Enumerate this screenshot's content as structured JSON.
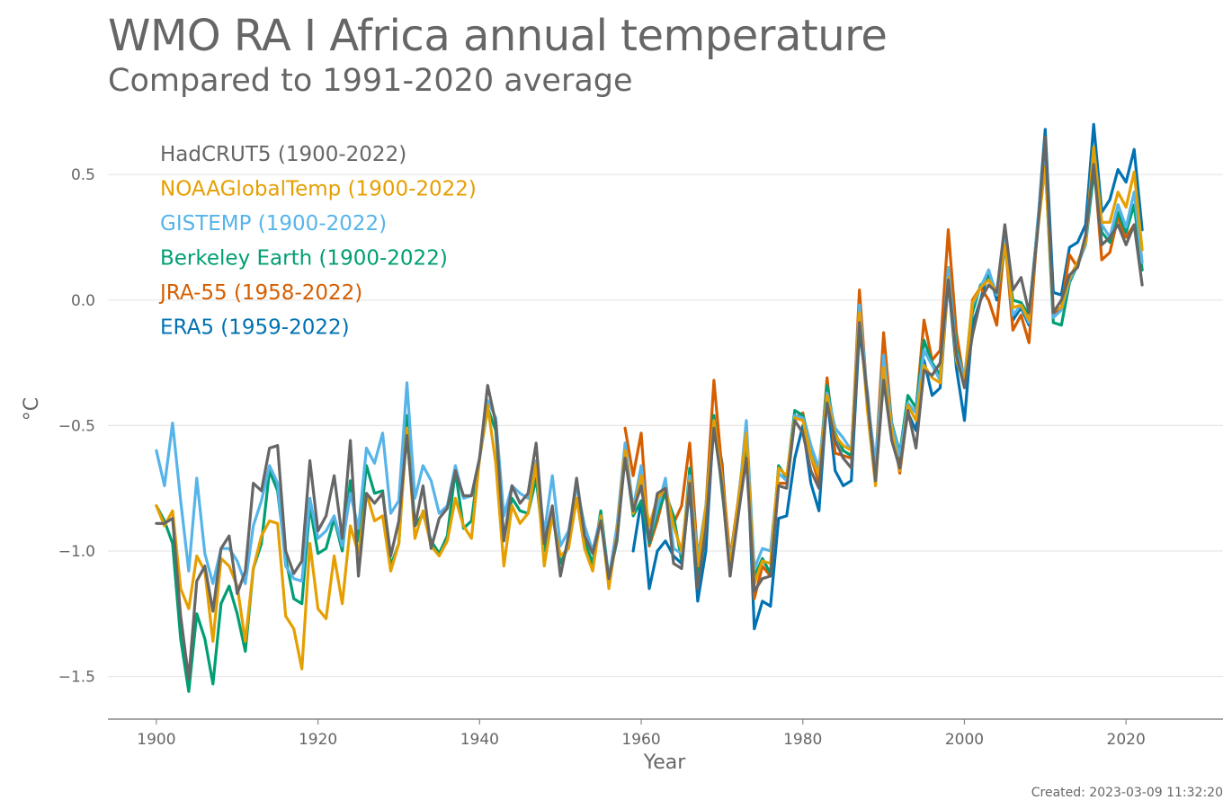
{
  "title": "WMO RA I Africa annual temperature",
  "subtitle": "Compared to 1991-2020 average",
  "created": "Created: 2023-03-09 11:32:20",
  "chart_data": {
    "type": "line",
    "xlabel": "Year",
    "ylabel": "°C",
    "xlim": [
      1894,
      2032
    ],
    "ylim": [
      -1.67,
      0.73
    ],
    "x_ticks": [
      1900,
      1920,
      1940,
      1960,
      1980,
      2000,
      2020
    ],
    "y_ticks": [
      -1.5,
      -1.0,
      -0.5,
      0.0,
      0.5
    ],
    "y_tick_labels": [
      "−1.5",
      "−1.0",
      "−0.5",
      "0.0",
      "0.5"
    ],
    "grid": "horizontal",
    "legend_position": "top-left",
    "series": [
      {
        "name": "ERA5 (1959-2022)",
        "color": "#0072b2",
        "start": 1959,
        "values": [
          -1.0,
          -0.8,
          -1.15,
          -1.0,
          -0.96,
          -1.02,
          -1.05,
          -0.75,
          -1.2,
          -1.0,
          -0.47,
          -0.65,
          -1.1,
          -0.8,
          -0.52,
          -1.31,
          -1.2,
          -1.22,
          -0.87,
          -0.86,
          -0.63,
          -0.5,
          -0.73,
          -0.84,
          -0.38,
          -0.68,
          -0.74,
          -0.72,
          -0.12,
          -0.37,
          -0.72,
          -0.25,
          -0.55,
          -0.65,
          -0.45,
          -0.52,
          -0.24,
          -0.38,
          -0.35,
          0.08,
          -0.27,
          -0.48,
          -0.1,
          0.0,
          0.12,
          0.0,
          0.25,
          -0.08,
          -0.03,
          -0.1,
          0.27,
          0.68,
          0.03,
          0.02,
          0.21,
          0.23,
          0.3,
          0.7,
          0.35,
          0.4,
          0.52,
          0.47,
          0.6,
          0.28
        ]
      },
      {
        "name": "JRA-55 (1958-2022)",
        "color": "#d55e00",
        "start": 1958,
        "values": [
          -0.51,
          -0.7,
          -0.53,
          -0.98,
          -0.88,
          -0.75,
          -0.89,
          -0.82,
          -0.57,
          -1.03,
          -0.83,
          -0.32,
          -0.68,
          -1.03,
          -0.8,
          -0.57,
          -1.19,
          -1.06,
          -1.1,
          -0.73,
          -0.73,
          -0.47,
          -0.45,
          -0.62,
          -0.73,
          -0.31,
          -0.61,
          -0.62,
          -0.63,
          0.04,
          -0.4,
          -0.66,
          -0.13,
          -0.49,
          -0.69,
          -0.43,
          -0.44,
          -0.08,
          -0.24,
          -0.2,
          0.28,
          -0.13,
          -0.33,
          0.0,
          0.05,
          0.0,
          -0.1,
          0.24,
          -0.12,
          -0.06,
          -0.17,
          0.27,
          0.58,
          -0.06,
          -0.03,
          0.18,
          0.13,
          0.25,
          0.56,
          0.16,
          0.19,
          0.33,
          0.25,
          0.3,
          0.12
        ]
      },
      {
        "name": "Berkeley Earth (1900-2022)",
        "color": "#009e73",
        "start": 1900,
        "values": [
          -0.82,
          -0.88,
          -0.97,
          -1.35,
          -1.56,
          -1.25,
          -1.35,
          -1.53,
          -1.21,
          -1.14,
          -1.25,
          -1.4,
          -1.07,
          -0.97,
          -0.68,
          -0.76,
          -1.03,
          -1.19,
          -1.21,
          -0.82,
          -1.01,
          -0.99,
          -0.87,
          -1.0,
          -0.72,
          -0.96,
          -0.66,
          -0.77,
          -0.76,
          -1.06,
          -0.97,
          -0.46,
          -0.9,
          -0.85,
          -0.96,
          -1.01,
          -0.94,
          -0.68,
          -0.91,
          -0.88,
          -0.63,
          -0.43,
          -0.52,
          -0.95,
          -0.79,
          -0.84,
          -0.85,
          -0.71,
          -1.0,
          -0.85,
          -1.05,
          -0.98,
          -0.72,
          -0.96,
          -1.05,
          -0.84,
          -1.11,
          -0.96,
          -0.61,
          -0.86,
          -0.8,
          -0.97,
          -0.85,
          -0.77,
          -0.86,
          -1.04,
          -0.67,
          -1.09,
          -0.88,
          -0.46,
          -0.76,
          -1.04,
          -0.84,
          -0.55,
          -1.1,
          -1.03,
          -1.09,
          -0.66,
          -0.71,
          -0.44,
          -0.46,
          -0.58,
          -0.68,
          -0.34,
          -0.53,
          -0.6,
          -0.62,
          -0.04,
          -0.41,
          -0.67,
          -0.23,
          -0.49,
          -0.61,
          -0.38,
          -0.43,
          -0.16,
          -0.25,
          -0.3,
          0.12,
          -0.19,
          -0.32,
          -0.05,
          0.06,
          0.09,
          0.02,
          0.21,
          0.0,
          -0.01,
          -0.06,
          0.28,
          0.55,
          -0.09,
          -0.1,
          0.07,
          0.14,
          0.22,
          0.51,
          0.27,
          0.23,
          0.35,
          0.27,
          0.38,
          0.12
        ]
      },
      {
        "name": "GISTEMP (1900-2022)",
        "color": "#56b4e9",
        "start": 1900,
        "values": [
          -0.6,
          -0.74,
          -0.49,
          -0.8,
          -1.08,
          -0.71,
          -1.01,
          -1.13,
          -0.99,
          -0.99,
          -1.04,
          -1.13,
          -0.9,
          -0.8,
          -0.66,
          -0.73,
          -1.06,
          -1.11,
          -1.12,
          -0.79,
          -0.95,
          -0.92,
          -0.86,
          -0.98,
          -0.77,
          -0.91,
          -0.59,
          -0.65,
          -0.53,
          -0.85,
          -0.8,
          -0.33,
          -0.79,
          -0.66,
          -0.72,
          -0.85,
          -0.82,
          -0.66,
          -0.79,
          -0.78,
          -0.63,
          -0.4,
          -0.47,
          -0.86,
          -0.74,
          -0.77,
          -0.79,
          -0.64,
          -0.93,
          -0.7,
          -0.98,
          -0.92,
          -0.74,
          -0.9,
          -1.0,
          -0.86,
          -1.11,
          -0.9,
          -0.57,
          -0.83,
          -0.66,
          -0.95,
          -0.83,
          -0.71,
          -0.99,
          -1.01,
          -0.7,
          -1.03,
          -0.82,
          -0.48,
          -0.74,
          -1.04,
          -0.82,
          -0.48,
          -1.07,
          -0.99,
          -1.0,
          -0.69,
          -0.72,
          -0.46,
          -0.47,
          -0.58,
          -0.67,
          -0.37,
          -0.51,
          -0.55,
          -0.6,
          -0.02,
          -0.39,
          -0.66,
          -0.22,
          -0.5,
          -0.62,
          -0.41,
          -0.45,
          -0.2,
          -0.26,
          -0.32,
          0.13,
          -0.21,
          -0.31,
          -0.02,
          0.05,
          0.12,
          0.02,
          0.24,
          -0.06,
          -0.02,
          -0.09,
          0.29,
          0.62,
          -0.07,
          -0.04,
          0.08,
          0.14,
          0.22,
          0.57,
          0.3,
          0.25,
          0.38,
          0.29,
          0.43,
          0.15
        ]
      },
      {
        "name": "NOAAGlobalTemp (1900-2022)",
        "color": "#e69f00",
        "start": 1900,
        "values": [
          -0.82,
          -0.9,
          -0.84,
          -1.15,
          -1.23,
          -1.02,
          -1.08,
          -1.36,
          -1.03,
          -1.06,
          -1.14,
          -1.36,
          -1.07,
          -0.94,
          -0.88,
          -0.89,
          -1.26,
          -1.31,
          -1.47,
          -0.97,
          -1.23,
          -1.27,
          -1.02,
          -1.21,
          -0.9,
          -1.01,
          -0.77,
          -0.88,
          -0.86,
          -1.08,
          -0.97,
          -0.51,
          -0.95,
          -0.84,
          -0.98,
          -1.02,
          -0.96,
          -0.79,
          -0.9,
          -0.95,
          -0.63,
          -0.42,
          -0.65,
          -1.06,
          -0.82,
          -0.89,
          -0.85,
          -0.65,
          -1.06,
          -0.86,
          -1.02,
          -0.99,
          -0.79,
          -0.99,
          -1.08,
          -0.86,
          -1.15,
          -0.93,
          -0.6,
          -0.85,
          -0.7,
          -0.9,
          -0.79,
          -0.75,
          -0.9,
          -1.0,
          -0.72,
          -1.06,
          -0.83,
          -0.48,
          -0.71,
          -1.06,
          -0.81,
          -0.53,
          -1.13,
          -1.04,
          -1.05,
          -0.67,
          -0.7,
          -0.47,
          -0.48,
          -0.62,
          -0.7,
          -0.38,
          -0.54,
          -0.58,
          -0.6,
          -0.05,
          -0.44,
          -0.74,
          -0.27,
          -0.52,
          -0.68,
          -0.42,
          -0.48,
          -0.26,
          -0.31,
          -0.33,
          0.09,
          -0.24,
          -0.33,
          -0.01,
          0.05,
          0.08,
          0.03,
          0.22,
          -0.03,
          -0.02,
          -0.08,
          0.26,
          0.53,
          -0.04,
          -0.03,
          0.09,
          0.15,
          0.23,
          0.61,
          0.31,
          0.31,
          0.43,
          0.37,
          0.51,
          0.2
        ]
      },
      {
        "name": "HadCRUT5 (1900-2022)",
        "color": "#666666",
        "start": 1900,
        "values": [
          -0.89,
          -0.89,
          -0.87,
          -1.26,
          -1.51,
          -1.12,
          -1.06,
          -1.24,
          -0.99,
          -0.94,
          -1.17,
          -1.08,
          -0.73,
          -0.76,
          -0.59,
          -0.58,
          -1.0,
          -1.09,
          -1.04,
          -0.64,
          -0.92,
          -0.86,
          -0.7,
          -0.95,
          -0.56,
          -1.1,
          -0.77,
          -0.81,
          -0.77,
          -1.02,
          -0.88,
          -0.54,
          -0.9,
          -0.74,
          -0.99,
          -0.87,
          -0.83,
          -0.68,
          -0.78,
          -0.78,
          -0.63,
          -0.34,
          -0.49,
          -0.96,
          -0.74,
          -0.81,
          -0.77,
          -0.57,
          -0.97,
          -0.82,
          -1.1,
          -0.94,
          -0.71,
          -0.94,
          -1.01,
          -0.88,
          -1.11,
          -0.95,
          -0.63,
          -0.84,
          -0.74,
          -0.96,
          -0.77,
          -0.75,
          -1.05,
          -1.07,
          -0.73,
          -1.15,
          -0.91,
          -0.51,
          -0.74,
          -1.1,
          -0.86,
          -0.63,
          -1.16,
          -1.11,
          -1.1,
          -0.74,
          -0.75,
          -0.48,
          -0.53,
          -0.68,
          -0.75,
          -0.41,
          -0.56,
          -0.63,
          -0.67,
          -0.09,
          -0.39,
          -0.72,
          -0.32,
          -0.56,
          -0.67,
          -0.44,
          -0.59,
          -0.28,
          -0.3,
          -0.25,
          0.08,
          -0.22,
          -0.35,
          -0.14,
          0.0,
          0.06,
          0.03,
          0.3,
          0.04,
          0.09,
          -0.05,
          0.25,
          0.65,
          -0.05,
          0.0,
          0.1,
          0.13,
          0.26,
          0.54,
          0.22,
          0.25,
          0.3,
          0.22,
          0.3,
          0.06
        ]
      }
    ],
    "legend_order": [
      "HadCRUT5 (1900-2022)",
      "NOAAGlobalTemp (1900-2022)",
      "GISTEMP (1900-2022)",
      "Berkeley Earth (1900-2022)",
      "JRA-55 (1958-2022)",
      "ERA5 (1959-2022)"
    ]
  }
}
